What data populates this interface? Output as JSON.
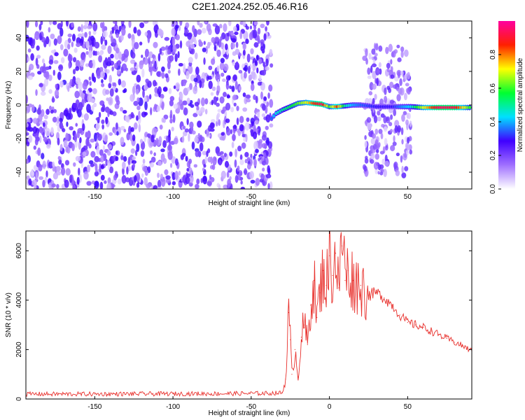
{
  "title": "C2E1.2024.252.05.46.R16",
  "chart_data": [
    {
      "type": "heatmap",
      "xlabel": "Height of straight line (km)",
      "ylabel": "Frequency (Hz)",
      "xlim": [
        -194,
        91
      ],
      "ylim": [
        -50,
        50
      ],
      "xticks": [
        -150,
        -100,
        -50,
        0,
        50
      ],
      "yticks": [
        -40,
        -20,
        0,
        20,
        40
      ],
      "colorbar": {
        "label": "Normalized spectral amplitude",
        "range": [
          0,
          1
        ],
        "ticks": [
          "0.0",
          "0.2",
          "0.4",
          "0.6",
          "0.8"
        ],
        "colors": [
          "#ffffff",
          "#a070ff",
          "#4000ff",
          "#00e0ff",
          "#00ff30",
          "#ffff00",
          "#ff2000",
          "#ff00a0"
        ]
      },
      "noise_region": {
        "x": [
          -194,
          -37
        ],
        "y": [
          -50,
          50
        ],
        "level": 0.2
      },
      "burst_region": {
        "x": [
          22,
          52
        ],
        "y": [
          -42,
          35
        ],
        "level": 0.15
      },
      "signal_track": [
        {
          "x": -37,
          "y": -8,
          "v": 0.35
        },
        {
          "x": -34,
          "y": -5,
          "v": 0.45
        },
        {
          "x": -30,
          "y": -3,
          "v": 0.5
        },
        {
          "x": -25,
          "y": -1,
          "v": 0.55
        },
        {
          "x": -20,
          "y": 1,
          "v": 0.62
        },
        {
          "x": -15,
          "y": 1.5,
          "v": 0.7
        },
        {
          "x": -10,
          "y": 1,
          "v": 0.85
        },
        {
          "x": -5,
          "y": 0.5,
          "v": 0.95
        },
        {
          "x": 0,
          "y": -1,
          "v": 0.6
        },
        {
          "x": 5,
          "y": -1,
          "v": 0.85
        },
        {
          "x": 10,
          "y": -0.5,
          "v": 0.5
        },
        {
          "x": 15,
          "y": 0,
          "v": 0.4
        },
        {
          "x": 20,
          "y": 0,
          "v": 0.35
        },
        {
          "x": 30,
          "y": -1,
          "v": 0.3
        },
        {
          "x": 40,
          "y": -1,
          "v": 0.3
        },
        {
          "x": 52,
          "y": -1,
          "v": 0.45
        },
        {
          "x": 60,
          "y": -1.5,
          "v": 0.7
        },
        {
          "x": 70,
          "y": -1.5,
          "v": 0.95
        },
        {
          "x": 80,
          "y": -1.5,
          "v": 0.92
        },
        {
          "x": 91,
          "y": -1.5,
          "v": 0.55
        }
      ]
    },
    {
      "type": "line",
      "xlabel": "Height of straight line (km)",
      "ylabel": "SNR (10 * v/v)",
      "xlim": [
        -194,
        91
      ],
      "ylim": [
        0,
        6800
      ],
      "xticks": [
        -150,
        -100,
        -50,
        0,
        50
      ],
      "yticks": [
        0,
        2000,
        4000,
        6000
      ],
      "color": "#e8302c",
      "series": [
        {
          "x": [
            -194,
            -150,
            -100,
            -60,
            -40,
            -30,
            -28,
            -26,
            -25,
            -24,
            -22,
            -20,
            -18,
            -16,
            -14,
            -12,
            -10,
            -8,
            -6,
            -4,
            -2,
            0,
            2,
            4,
            6,
            8,
            9,
            10,
            12,
            15,
            20,
            25,
            30,
            35,
            40,
            45,
            50,
            55,
            60,
            65,
            70,
            75,
            80,
            85,
            91
          ],
          "y": [
            200,
            200,
            210,
            220,
            230,
            250,
            800,
            3500,
            2400,
            1000,
            2000,
            900,
            2500,
            3000,
            2200,
            3800,
            4800,
            3300,
            4300,
            5200,
            4600,
            5800,
            5000,
            5900,
            4500,
            6200,
            6800,
            4800,
            5200,
            4800,
            4600,
            4200,
            4300,
            4100,
            3800,
            3400,
            3100,
            3000,
            2900,
            2750,
            2600,
            2450,
            2300,
            2150,
            1950
          ]
        }
      ]
    }
  ]
}
